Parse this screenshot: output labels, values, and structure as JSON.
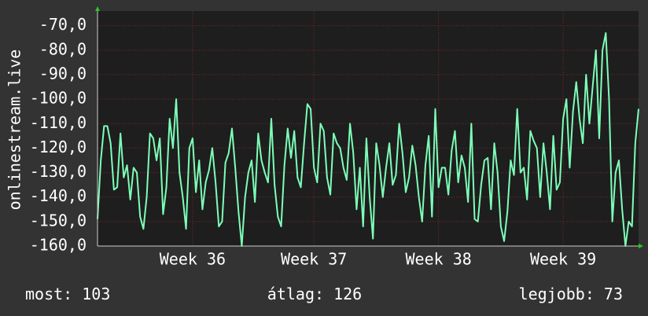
{
  "chart_data": {
    "type": "line",
    "y_label": "onlinestream.live",
    "color": "#7dffb8",
    "values": [
      -149,
      -125,
      -111,
      -111,
      -118,
      -137,
      -136,
      -114,
      -132,
      -127,
      -141,
      -128,
      -130,
      -148,
      -153,
      -140,
      -114,
      -116,
      -125,
      -116,
      -147,
      -136,
      -108,
      -120,
      -100,
      -130,
      -140,
      -153,
      -120,
      -116,
      -138,
      -125,
      -145,
      -134,
      -129,
      -120,
      -134,
      -152,
      -150,
      -126,
      -122,
      -112,
      -128,
      -146,
      -160,
      -140,
      -130,
      -125,
      -142,
      -114,
      -125,
      -130,
      -134,
      -108,
      -135,
      -148,
      -152,
      -127,
      -112,
      -124,
      -113,
      -132,
      -136,
      -118,
      -102,
      -104,
      -128,
      -134,
      -110,
      -113,
      -132,
      -139,
      -114,
      -118,
      -120,
      -128,
      -133,
      -110,
      -122,
      -145,
      -128,
      -152,
      -116,
      -140,
      -157,
      -118,
      -127,
      -140,
      -128,
      -118,
      -135,
      -131,
      -110,
      -122,
      -138,
      -132,
      -119,
      -127,
      -140,
      -150,
      -127,
      -115,
      -148,
      -104,
      -136,
      -128,
      -128,
      -139,
      -121,
      -113,
      -134,
      -123,
      -128,
      -142,
      -110,
      -149,
      -150,
      -135,
      -125,
      -124,
      -145,
      -118,
      -130,
      -152,
      -158,
      -146,
      -125,
      -131,
      -104,
      -130,
      -128,
      -141,
      -113,
      -117,
      -120,
      -140,
      -118,
      -130,
      -145,
      -115,
      -137,
      -134,
      -108,
      -100,
      -128,
      -105,
      -93,
      -108,
      -118,
      -90,
      -110,
      -95,
      -80,
      -116,
      -80,
      -73,
      -100,
      -150,
      -130,
      -125,
      -145,
      -160,
      -150,
      -152,
      -118,
      -104
    ],
    "xlim": [
      0,
      165
    ],
    "xticks": [
      {
        "value": 29,
        "label": "Week 36"
      },
      {
        "value": 66,
        "label": "Week 37"
      },
      {
        "value": 104,
        "label": "Week 38"
      },
      {
        "value": 142,
        "label": "Week 39"
      }
    ],
    "ylim": [
      -160,
      -64
    ],
    "yticks": [
      {
        "value": -160,
        "label": "-160,0"
      },
      {
        "value": -150,
        "label": "-150,0"
      },
      {
        "value": -140,
        "label": "-140,0"
      },
      {
        "value": -130,
        "label": "-130,0"
      },
      {
        "value": -120,
        "label": "-120,0"
      },
      {
        "value": -110,
        "label": "-110,0"
      },
      {
        "value": -100,
        "label": "-100,0"
      },
      {
        "value": -90,
        "label": "-90,0"
      },
      {
        "value": -80,
        "label": "-80,0"
      },
      {
        "value": -70,
        "label": "-70,0"
      }
    ],
    "grid": true,
    "stats": [
      {
        "label": "most:",
        "value": 103
      },
      {
        "label": "átlag:",
        "value": 126
      },
      {
        "label": "legjobb:",
        "value": 73
      }
    ]
  }
}
